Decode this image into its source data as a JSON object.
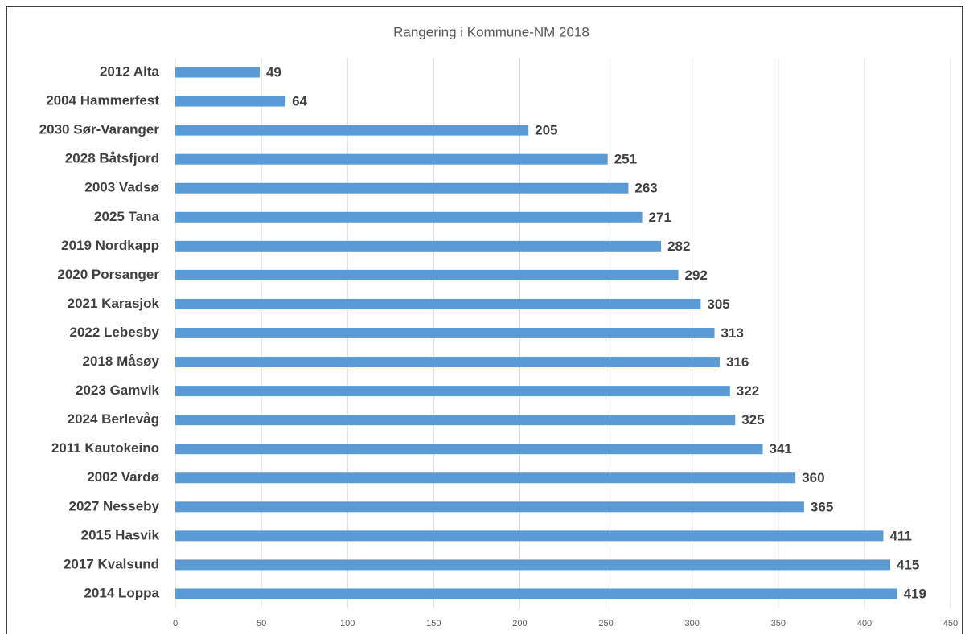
{
  "chart_data": {
    "type": "bar",
    "orientation": "horizontal",
    "title": "Rangering i Kommune-NM 2018",
    "categories": [
      "2012 Alta",
      "2004 Hammerfest",
      "2030 Sør-Varanger",
      "2028 Båtsfjord",
      "2003 Vadsø",
      "2025 Tana",
      "2019 Nordkapp",
      "2020 Porsanger",
      "2021 Karasjok",
      "2022 Lebesby",
      "2018 Måsøy",
      "2023 Gamvik",
      "2024 Berlevåg",
      "2011 Kautokeino",
      "2002 Vardø",
      "2027 Nesseby",
      "2015 Hasvik",
      "2017 Kvalsund",
      "2014 Loppa"
    ],
    "values": [
      49,
      64,
      205,
      251,
      263,
      271,
      282,
      292,
      305,
      313,
      316,
      322,
      325,
      341,
      360,
      365,
      411,
      415,
      419
    ],
    "color": "#5b9bd5",
    "xlim": [
      0,
      450
    ],
    "xticks": [
      0,
      50,
      100,
      150,
      200,
      250,
      300,
      350,
      400,
      450
    ],
    "grid": true
  }
}
